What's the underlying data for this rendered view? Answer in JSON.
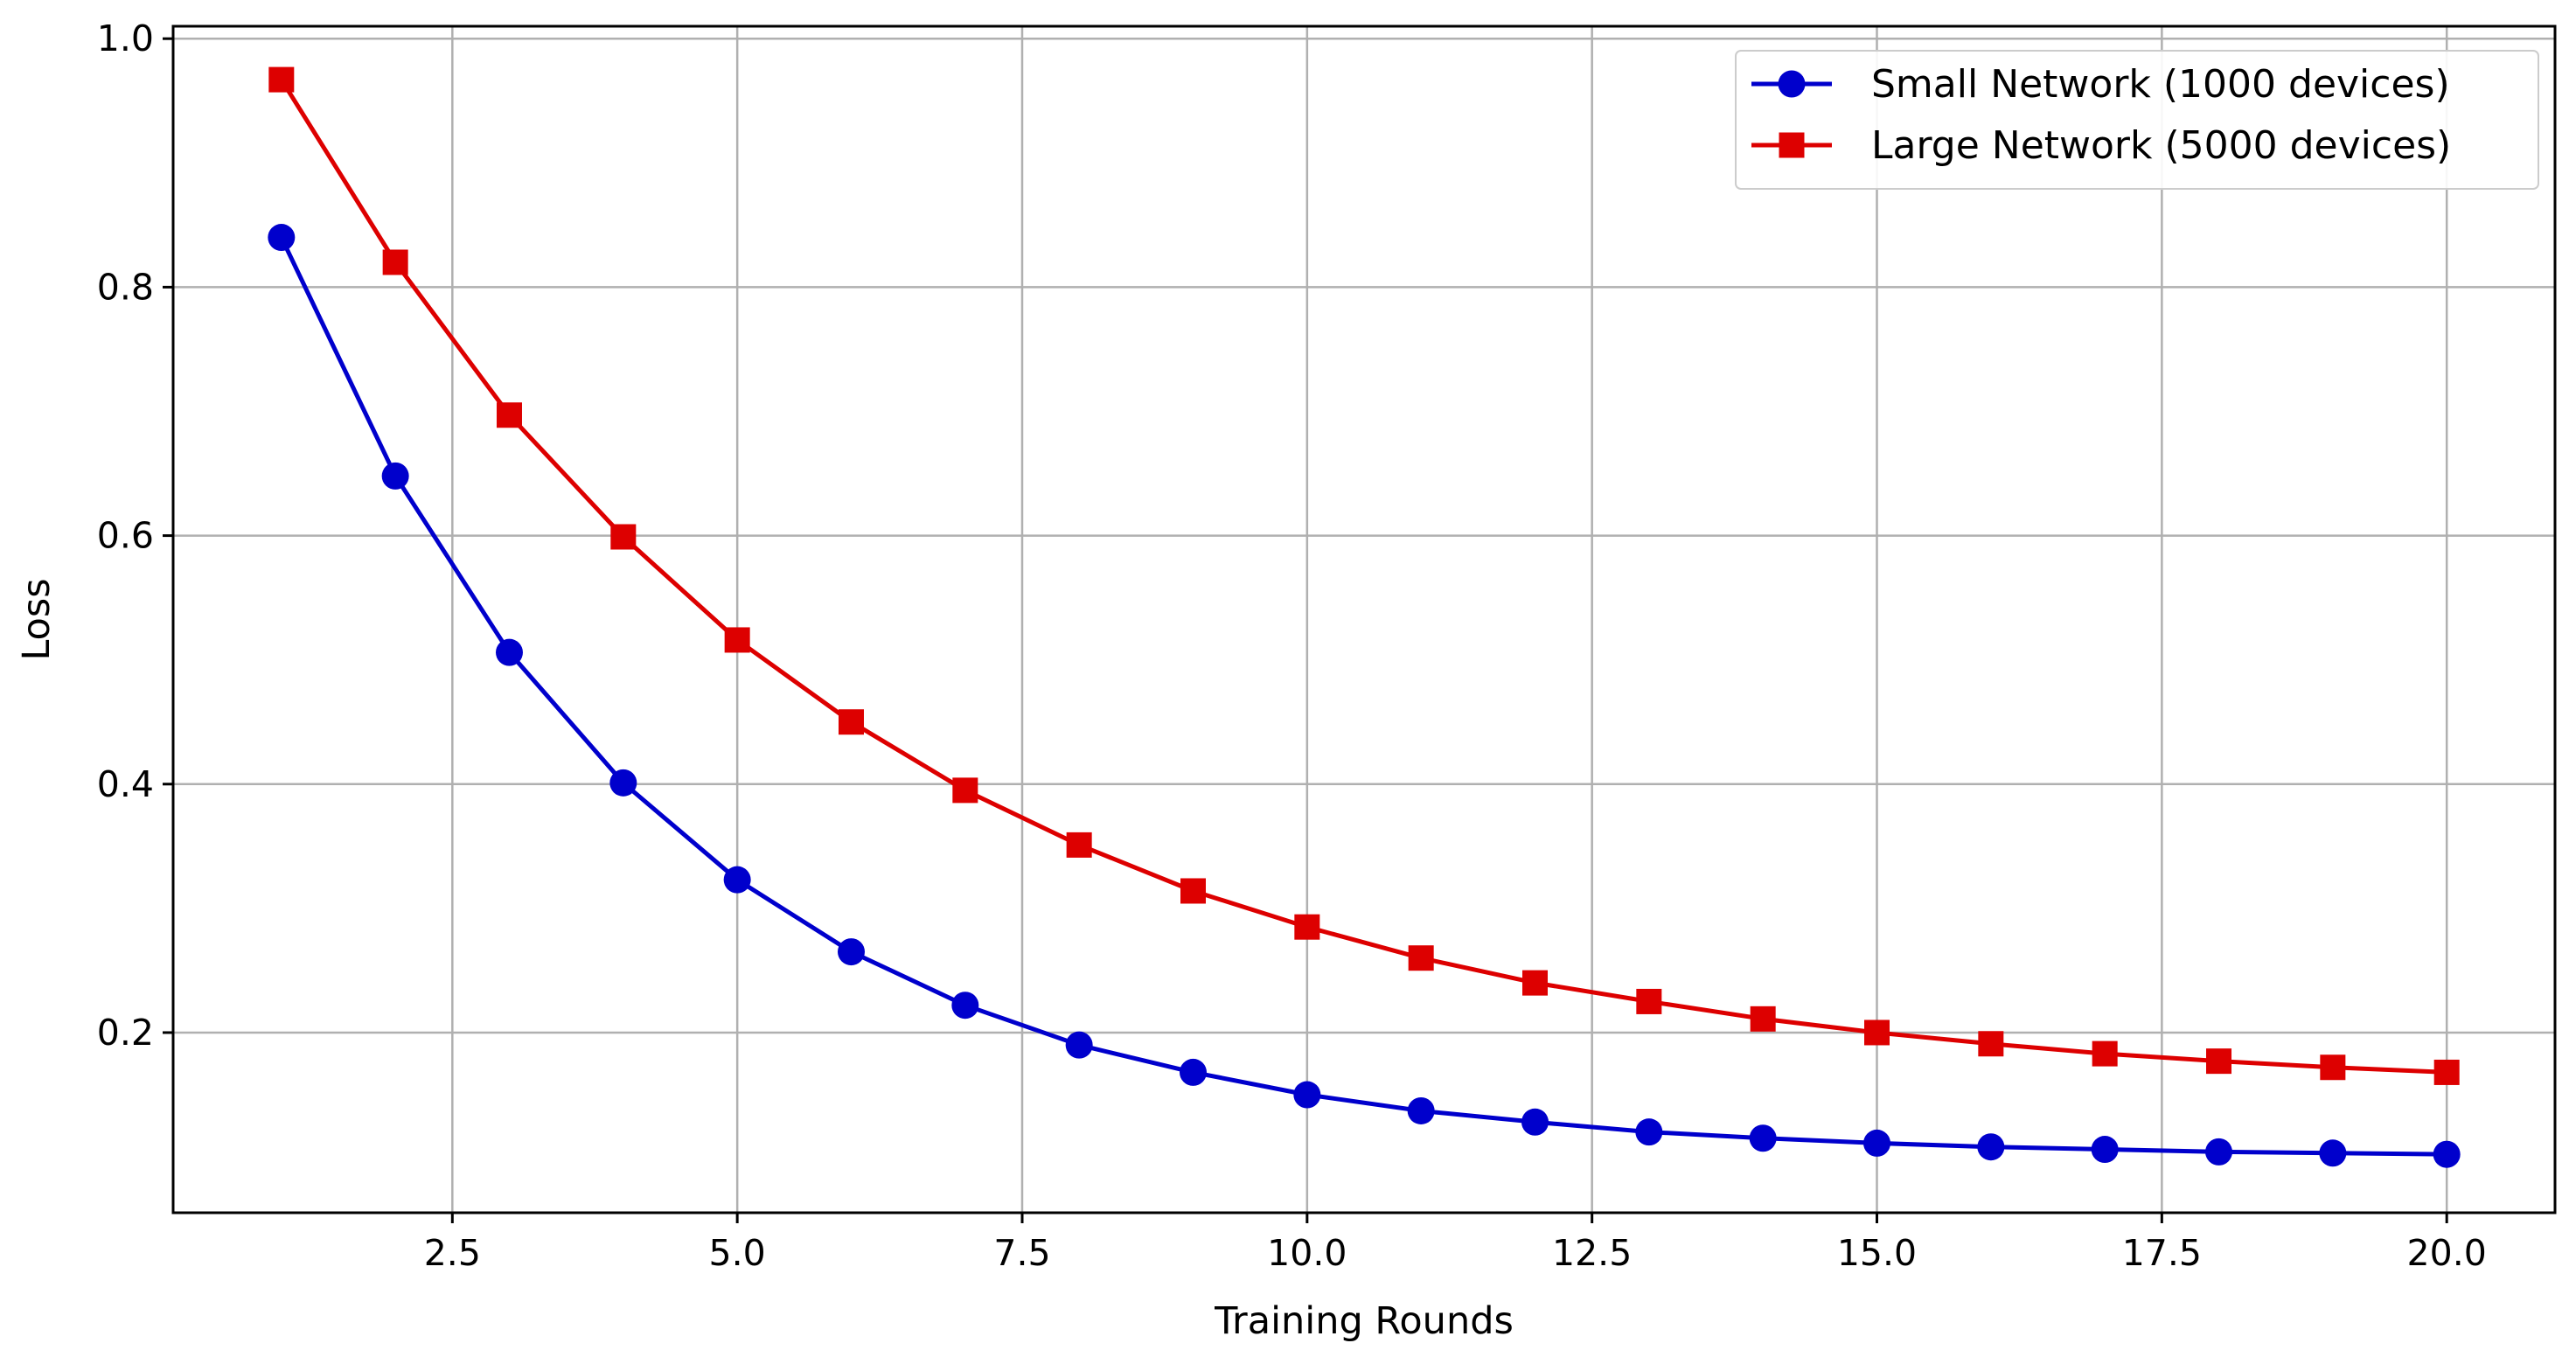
{
  "chart_data": {
    "type": "line",
    "title": "",
    "xlabel": "Training Rounds",
    "ylabel": "Loss",
    "x": [
      1,
      2,
      3,
      4,
      5,
      6,
      7,
      8,
      9,
      10,
      11,
      12,
      13,
      14,
      15,
      16,
      17,
      18,
      19,
      20
    ],
    "xlim": [
      0.05,
      20.95
    ],
    "ylim": [
      0.055,
      1.01
    ],
    "xticks": [
      2.5,
      5.0,
      7.5,
      10.0,
      12.5,
      15.0,
      17.5,
      20.0
    ],
    "xtick_labels": [
      "2.5",
      "5.0",
      "7.5",
      "10.0",
      "12.5",
      "15.0",
      "17.5",
      "20.0"
    ],
    "yticks": [
      0.2,
      0.4,
      0.6,
      0.8,
      1.0
    ],
    "ytick_labels": [
      "0.2",
      "0.4",
      "0.6",
      "0.8",
      "1.0"
    ],
    "grid": true,
    "legend_position": "top-right",
    "series": [
      {
        "name": "Small Network (1000 devices)",
        "color": "#0000cc",
        "marker": "circle",
        "values": [
          0.84,
          0.648,
          0.506,
          0.401,
          0.323,
          0.265,
          0.222,
          0.19,
          0.168,
          0.15,
          0.137,
          0.128,
          0.12,
          0.115,
          0.111,
          0.108,
          0.106,
          0.104,
          0.103,
          0.102
        ]
      },
      {
        "name": "Large Network (5000 devices)",
        "color": "#dd0000",
        "marker": "square",
        "values": [
          0.967,
          0.82,
          0.697,
          0.599,
          0.516,
          0.45,
          0.395,
          0.351,
          0.314,
          0.285,
          0.26,
          0.24,
          0.225,
          0.211,
          0.2,
          0.191,
          0.183,
          0.177,
          0.172,
          0.168
        ]
      }
    ]
  }
}
